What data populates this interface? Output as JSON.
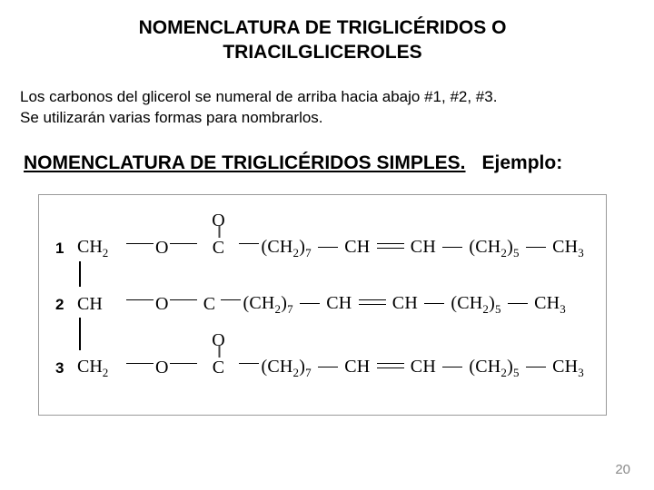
{
  "title": "NOMENCLATURA DE TRIGLICÉRIDOS O TRIACILGLICEROLES",
  "body_line1": "Los carbonos del glicerol se numeral de arriba hacia abajo #1, #2, #3.",
  "body_line2": "Se utilizarán varias formas para nombrarlos.",
  "subtitle": "NOMENCLATURA DE TRIGLICÉRIDOS SIMPLES.",
  "example_label": "Ejemplo:",
  "diagram": {
    "rows": [
      {
        "num": "1",
        "glycerol": "CH",
        "g_sub": "2"
      },
      {
        "num": "2",
        "glycerol": "CH",
        "g_sub": ""
      },
      {
        "num": "3",
        "glycerol": "CH",
        "g_sub": "2"
      }
    ],
    "chain": {
      "O_top": "O",
      "C": "C",
      "ch2_7_a": "(CH",
      "ch2_7_sub": "2",
      "ch2_7_b": ")",
      "seven": "7",
      "CH_a": "CH",
      "CH_b": "CH",
      "ch2_5_a": "(CH",
      "ch2_5_sub": "2",
      "ch2_5_b": ")",
      "five": "5",
      "CH3": "CH",
      "three": "3"
    },
    "O_link": "O"
  },
  "page_number": "20",
  "colors": {
    "text": "#000000",
    "page_num": "#8a8a8a",
    "border": "#999999",
    "bg": "#ffffff"
  }
}
